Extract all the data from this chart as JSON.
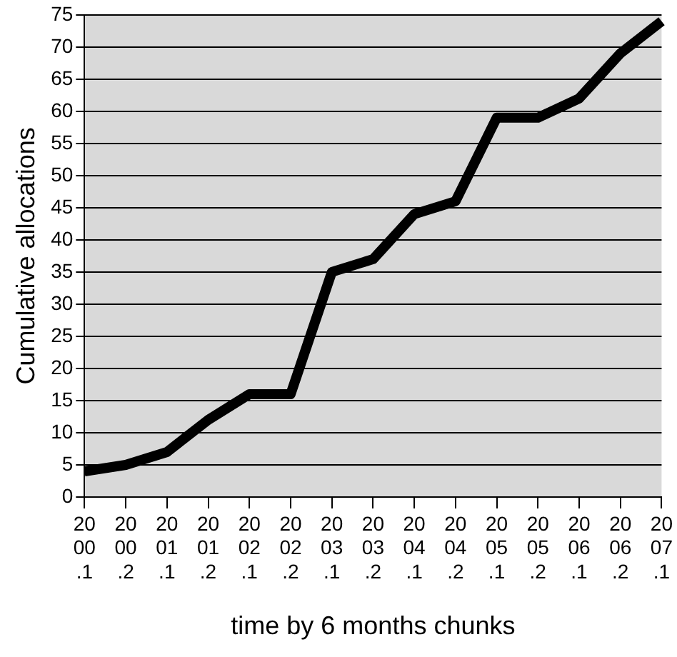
{
  "chart_data": {
    "type": "line",
    "xlabel": "time by 6 months chunks",
    "ylabel": "Cumulative allocations",
    "categories": [
      "2000.1",
      "2000.2",
      "2001.1",
      "2001.2",
      "2002.1",
      "2002.2",
      "2003.1",
      "2003.2",
      "2004.1",
      "2004.2",
      "2005.1",
      "2005.2",
      "2006.1",
      "2006.2",
      "2007.1"
    ],
    "series": [
      {
        "color": "#000000",
        "values": [
          4,
          5,
          7,
          12,
          16,
          16,
          35,
          37,
          44,
          46,
          59,
          59,
          62,
          69,
          74
        ]
      }
    ],
    "ylim": [
      0,
      75
    ],
    "yticks": [
      0,
      5,
      10,
      15,
      20,
      25,
      30,
      35,
      40,
      45,
      50,
      55,
      60,
      65,
      70,
      75
    ],
    "grid": "y",
    "legend": false,
    "marker": "none",
    "line_style": "solid"
  }
}
